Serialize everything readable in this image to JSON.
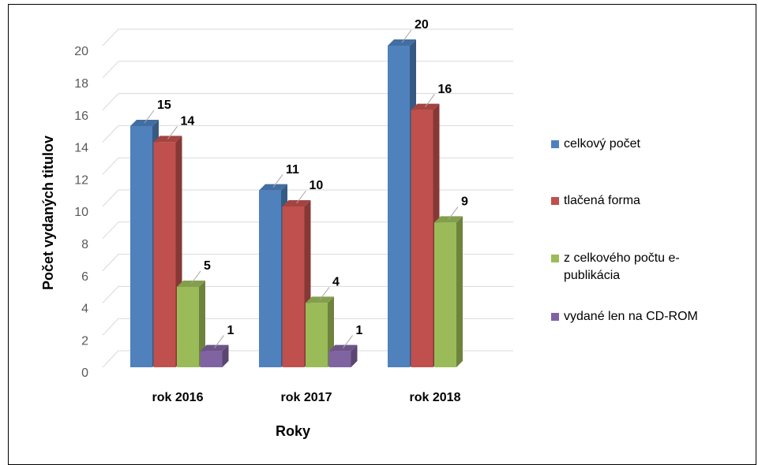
{
  "chart_data": {
    "type": "bar3d",
    "x_label": "Roky",
    "y_label": "Počet vydaných titulov",
    "categories": [
      "rok 2016",
      "rok 2017",
      "rok 2018"
    ],
    "series": [
      {
        "name": "celkový počet",
        "color": "#4f81bd",
        "values": [
          15,
          11,
          20
        ]
      },
      {
        "name": "tlačená forma",
        "color": "#c0504d",
        "values": [
          14,
          10,
          16
        ]
      },
      {
        "name": "z celkového počtu e-publikácia",
        "color": "#9bbb59",
        "values": [
          5,
          4,
          9
        ]
      },
      {
        "name": "vydané len na CD-ROM",
        "color": "#8064a2",
        "values": [
          1,
          1,
          null
        ]
      }
    ],
    "ylim": [
      0,
      20
    ],
    "yticks": [
      0,
      2,
      4,
      6,
      8,
      10,
      12,
      14,
      16,
      18,
      20
    ],
    "grid": true,
    "legend": "right"
  }
}
